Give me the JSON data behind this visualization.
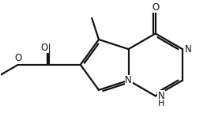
{
  "bg_color": "#ffffff",
  "line_color": "#111111",
  "lw": 1.6,
  "fs": 8.5,
  "bl": 1.0,
  "shift_x": 0.3,
  "shift_y": 0.0,
  "xlim": [
    -3.8,
    2.8
  ],
  "ylim": [
    -1.6,
    2.0
  ],
  "figsize": [
    2.62,
    1.48
  ],
  "dpi": 100
}
